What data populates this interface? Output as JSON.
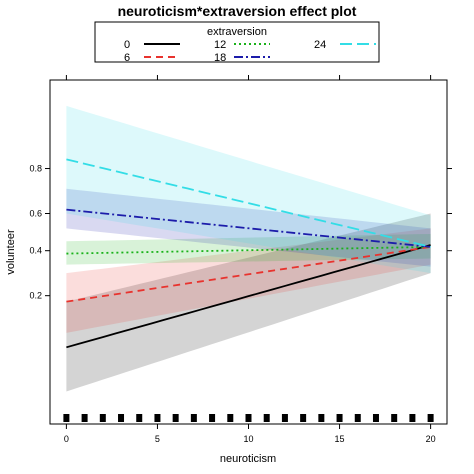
{
  "chart_data": {
    "type": "line",
    "title": "neuroticism*extraversion effect plot",
    "xlabel": "neuroticism",
    "ylabel": "volunteer",
    "xlim": [
      -0.9,
      20.9
    ],
    "ylim": [
      0.015,
      0.965
    ],
    "y_scale": "logit",
    "xticks": [
      0,
      5,
      10,
      15,
      20
    ],
    "xtick_labels": [
      "0",
      "5",
      "10",
      "15",
      "20"
    ],
    "yticks": [
      0.2,
      0.4,
      0.6,
      0.8
    ],
    "ytick_labels": [
      "0.2",
      "0.4",
      "0.6",
      "0.8"
    ],
    "legend": {
      "title": "extraversion",
      "placement": "top"
    },
    "series": [
      {
        "name": "0",
        "color": "#000000",
        "dash": "",
        "x": [
          0,
          20
        ],
        "y": [
          0.075,
          0.43
        ],
        "lower": [
          0.03,
          0.29
        ],
        "upper": [
          0.18,
          0.6
        ]
      },
      {
        "name": "6",
        "color": "#e8332e",
        "dash": "7,5",
        "x": [
          0,
          20
        ],
        "y": [
          0.18,
          0.42
        ],
        "lower": [
          0.1,
          0.33
        ],
        "upper": [
          0.29,
          0.52
        ]
      },
      {
        "name": "12",
        "color": "#1ab21a",
        "dash": "2,3",
        "x": [
          0,
          20
        ],
        "y": [
          0.385,
          0.42
        ],
        "lower": [
          0.33,
          0.36
        ],
        "upper": [
          0.45,
          0.49
        ]
      },
      {
        "name": "18",
        "color": "#1c1caa",
        "dash": "9,3,2,3",
        "x": [
          0,
          20
        ],
        "y": [
          0.62,
          0.42
        ],
        "lower": [
          0.52,
          0.32
        ],
        "upper": [
          0.72,
          0.52
        ]
      },
      {
        "name": "24",
        "color": "#33dde6",
        "dash": "12,5",
        "x": [
          0,
          20
        ],
        "y": [
          0.83,
          0.42
        ],
        "lower": [
          0.6,
          0.29
        ],
        "upper": [
          0.94,
          0.59
        ]
      }
    ],
    "rug": [
      0,
      1,
      2,
      3,
      4,
      5,
      6,
      7,
      8,
      9,
      10,
      11,
      12,
      13,
      14,
      15,
      16,
      17,
      18,
      19,
      20
    ],
    "grid": false
  }
}
